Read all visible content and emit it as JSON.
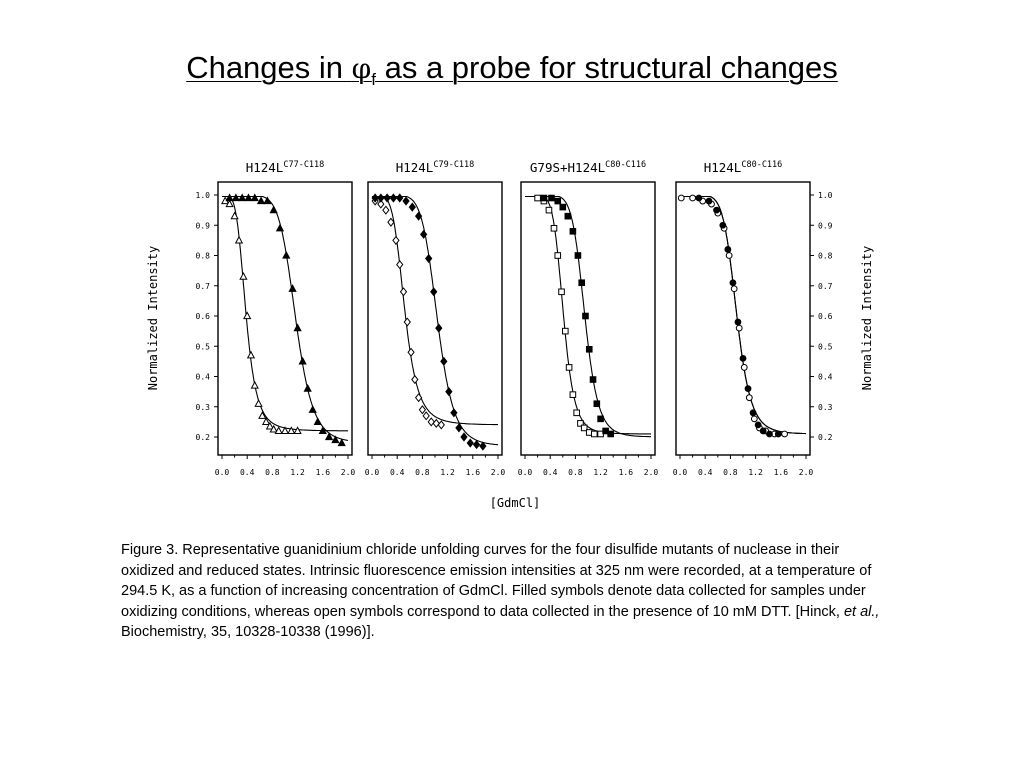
{
  "slide": {
    "title_pre": "Changes in ",
    "title_symbol": "φ",
    "title_sub": "f",
    "title_post": " as a probe for structural changes"
  },
  "caption": {
    "pre": "Figure 3.  Representative guanidinium chloride unfolding curves for the four disulfide mutants of nuclease in their oxidized and reduced states. Intrinsic fluorescence emission intensities at 325 nm were recorded, at a temperature of 294.5 K, as a function of increasing concentration of GdmCl. Filled symbols denote data collected for samples under oxidizing conditions, whereas open symbols correspond to data collected in the presence of 10 mM DTT. [Hinck, ",
    "italic": "et al.,",
    "post": " Biochemistry, 35, 10328-10338 (1996)]."
  },
  "chart_data": {
    "type": "scatter",
    "xlabel": "[GdmCl]",
    "ylabel": "Normalized Intensity",
    "xlim": [
      0.0,
      2.0
    ],
    "ylim": [
      0.15,
      1.03
    ],
    "x_ticks": [
      0.0,
      0.4,
      0.8,
      1.2,
      1.6,
      2.0
    ],
    "x_tick_labels": [
      "0.0",
      "0.4",
      "0.8",
      "1.2",
      "1.6",
      "2.0"
    ],
    "y_ticks": [
      0.2,
      0.3,
      0.4,
      0.5,
      0.6,
      0.7,
      0.8,
      0.9,
      1.0
    ],
    "y_tick_labels": [
      "0.2",
      "0.3",
      "0.4",
      "0.5",
      "0.6",
      "0.7",
      "0.8",
      "0.9",
      "1.0"
    ],
    "legend_note": "Filled symbols: oxidizing conditions; open symbols: 10 mM DTT",
    "panels": [
      {
        "title": "H124L",
        "title_sup": "C77-C118",
        "y_axis_side": "left",
        "series": [
          {
            "symbol": "open-triangle",
            "fill": "open",
            "baseline": 0.22,
            "x": [
              0.05,
              0.12,
              0.2,
              0.27,
              0.34,
              0.4,
              0.46,
              0.52,
              0.58,
              0.64,
              0.7,
              0.76,
              0.82,
              0.9,
              1.0,
              1.1,
              1.2
            ],
            "y": [
              0.98,
              0.97,
              0.93,
              0.85,
              0.73,
              0.6,
              0.47,
              0.37,
              0.31,
              0.27,
              0.25,
              0.235,
              0.225,
              0.22,
              0.22,
              0.22,
              0.22
            ]
          },
          {
            "symbol": "filled-triangle",
            "fill": "filled",
            "baseline": 0.18,
            "x": [
              0.12,
              0.22,
              0.32,
              0.42,
              0.52,
              0.62,
              0.72,
              0.82,
              0.92,
              1.02,
              1.12,
              1.2,
              1.28,
              1.36,
              1.44,
              1.52,
              1.6,
              1.7,
              1.8,
              1.9
            ],
            "y": [
              0.99,
              0.99,
              0.99,
              0.99,
              0.99,
              0.98,
              0.98,
              0.95,
              0.89,
              0.8,
              0.69,
              0.56,
              0.45,
              0.36,
              0.29,
              0.25,
              0.22,
              0.2,
              0.19,
              0.18
            ]
          }
        ]
      },
      {
        "title": "H124L",
        "title_sup": "C79-C118",
        "y_axis_side": "none",
        "series": [
          {
            "symbol": "open-diamond",
            "fill": "open",
            "baseline": 0.24,
            "x": [
              0.05,
              0.14,
              0.22,
              0.3,
              0.38,
              0.44,
              0.5,
              0.56,
              0.62,
              0.68,
              0.74,
              0.8,
              0.86,
              0.94,
              1.02,
              1.1
            ],
            "y": [
              0.98,
              0.97,
              0.95,
              0.91,
              0.85,
              0.77,
              0.68,
              0.58,
              0.48,
              0.39,
              0.33,
              0.29,
              0.27,
              0.25,
              0.245,
              0.24
            ]
          },
          {
            "symbol": "filled-diamond",
            "fill": "filled",
            "baseline": 0.17,
            "x": [
              0.05,
              0.14,
              0.24,
              0.34,
              0.44,
              0.54,
              0.64,
              0.74,
              0.82,
              0.9,
              0.98,
              1.06,
              1.14,
              1.22,
              1.3,
              1.38,
              1.46,
              1.56,
              1.66,
              1.76
            ],
            "y": [
              0.99,
              0.99,
              0.99,
              0.99,
              0.99,
              0.98,
              0.96,
              0.93,
              0.87,
              0.79,
              0.68,
              0.56,
              0.45,
              0.35,
              0.28,
              0.23,
              0.2,
              0.18,
              0.175,
              0.17
            ]
          }
        ]
      },
      {
        "title": "G79S+H124L",
        "title_sup": "C80-C116",
        "y_axis_side": "none",
        "series": [
          {
            "symbol": "open-square",
            "fill": "open",
            "baseline": 0.21,
            "x": [
              0.2,
              0.3,
              0.38,
              0.46,
              0.52,
              0.58,
              0.64,
              0.7,
              0.76,
              0.82,
              0.88,
              0.94,
              1.02,
              1.1,
              1.2
            ],
            "y": [
              0.99,
              0.98,
              0.95,
              0.89,
              0.8,
              0.68,
              0.55,
              0.43,
              0.34,
              0.28,
              0.245,
              0.23,
              0.215,
              0.21,
              0.21
            ]
          },
          {
            "symbol": "filled-square",
            "fill": "filled",
            "baseline": 0.2,
            "x": [
              0.3,
              0.42,
              0.52,
              0.6,
              0.68,
              0.76,
              0.84,
              0.9,
              0.96,
              1.02,
              1.08,
              1.14,
              1.2,
              1.28,
              1.36
            ],
            "y": [
              0.99,
              0.99,
              0.98,
              0.96,
              0.93,
              0.88,
              0.8,
              0.71,
              0.6,
              0.49,
              0.39,
              0.31,
              0.26,
              0.22,
              0.21
            ]
          }
        ]
      },
      {
        "title": "H124L",
        "title_sup": "C80-C116",
        "y_axis_side": "right",
        "series": [
          {
            "symbol": "open-circle",
            "fill": "open",
            "baseline": 0.21,
            "x": [
              0.02,
              0.2,
              0.36,
              0.5,
              0.6,
              0.7,
              0.78,
              0.86,
              0.94,
              1.02,
              1.1,
              1.18,
              1.26,
              1.36,
              1.5,
              1.66
            ],
            "y": [
              0.99,
              0.99,
              0.98,
              0.97,
              0.94,
              0.89,
              0.8,
              0.69,
              0.56,
              0.43,
              0.33,
              0.26,
              0.23,
              0.22,
              0.21,
              0.21
            ]
          },
          {
            "symbol": "filled-circle",
            "fill": "filled",
            "baseline": 0.21,
            "x": [
              0.3,
              0.46,
              0.58,
              0.68,
              0.76,
              0.84,
              0.92,
              1.0,
              1.08,
              1.16,
              1.24,
              1.32,
              1.42,
              1.56
            ],
            "y": [
              0.99,
              0.98,
              0.95,
              0.9,
              0.82,
              0.71,
              0.58,
              0.46,
              0.36,
              0.28,
              0.24,
              0.22,
              0.21,
              0.21
            ]
          }
        ]
      }
    ]
  }
}
